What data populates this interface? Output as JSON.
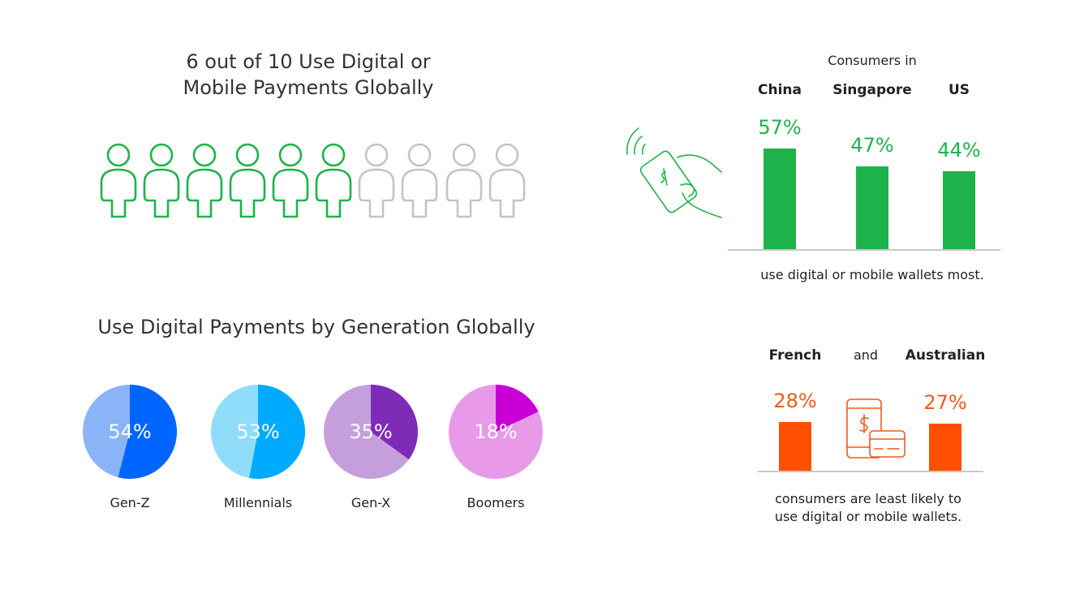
{
  "left": {
    "title_line1": "6 out of 10 Use Digital or",
    "title_line2": "Mobile Payments Globally",
    "people": {
      "total": 10,
      "highlighted": 6,
      "highlight_color": "#1db34a",
      "base_color": "#c4c4c4"
    },
    "generation_title": "Use Digital Payments by Generation Globally"
  },
  "right_top": {
    "header": "Consumers in",
    "caption": "use digital or mobile wallets most.",
    "icon": "contactless-phone-payment-icon"
  },
  "right_bottom": {
    "connector": "and",
    "caption_line1": "consumers are least likely to",
    "caption_line2": "use digital or mobile wallets.",
    "icon": "mobile-wallet-card-icon"
  },
  "chart_data": [
    {
      "type": "bar",
      "categories": [
        "China",
        "Singapore",
        "US"
      ],
      "values": [
        57,
        47,
        44
      ],
      "value_labels": [
        "57%",
        "47%",
        "44%"
      ],
      "color": "#1db34a",
      "title": "Consumers in",
      "ylim": [
        0,
        70
      ]
    },
    {
      "type": "bar",
      "categories": [
        "French",
        "Australian"
      ],
      "values": [
        28,
        27
      ],
      "value_labels": [
        "28%",
        "27%"
      ],
      "color": "#fe5000",
      "ylim": [
        0,
        70
      ]
    },
    {
      "type": "pie",
      "title": "Use Digital Payments by Generation Globally",
      "pies": [
        {
          "label": "Gen-Z",
          "value": 54,
          "value_label": "54%",
          "color": "#0066ff",
          "rest_color": "#8ab4f8"
        },
        {
          "label": "Millennials",
          "value": 53,
          "value_label": "53%",
          "color": "#00aaff",
          "rest_color": "#8fdcfb"
        },
        {
          "label": "Gen-X",
          "value": 35,
          "value_label": "35%",
          "color": "#7e2bb8",
          "rest_color": "#c49fdc"
        },
        {
          "label": "Boomers",
          "value": 18,
          "value_label": "18%",
          "color": "#c800d6",
          "rest_color": "#e89ae8"
        }
      ]
    }
  ]
}
